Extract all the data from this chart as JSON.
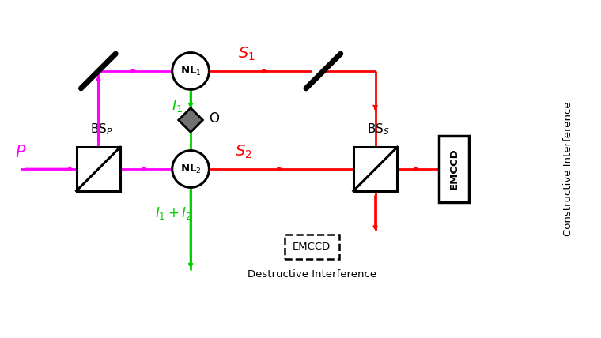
{
  "bg_color": "#ffffff",
  "magenta": "#FF00FF",
  "red": "#FF0000",
  "green": "#00CC00",
  "black": "#000000",
  "figsize": [
    7.6,
    4.28
  ],
  "dpi": 100,
  "xlim": [
    0,
    10
  ],
  "ylim": [
    0,
    5.6
  ]
}
